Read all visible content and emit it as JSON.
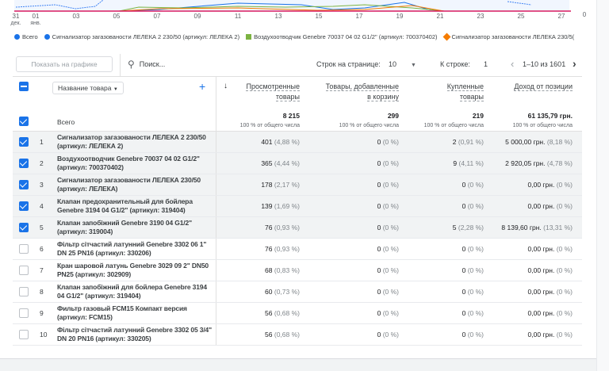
{
  "chart": {
    "x_labels": [
      "31",
      "01",
      "03",
      "05",
      "07",
      "09",
      "11",
      "13",
      "15",
      "17",
      "19",
      "21",
      "23",
      "25",
      "27"
    ],
    "month_labels": [
      "дек.",
      "янв."
    ],
    "y_label": "0",
    "legend": [
      {
        "label": "Всего",
        "color": "#1a73e8"
      },
      {
        "label": "Сигнализатор загазованости ЛЕЛЕКА 2 230/50 (артикул: ЛЕЛЕКА 2)",
        "color": "#1a73e8"
      },
      {
        "label": "Воздухоотводчик Genebre 70037 04 02 G1/2\" (артикул: 700370402)",
        "color": "#7cb342"
      },
      {
        "label": "Сигнализатор загазованости ЛЕЛЕКА 230/5(",
        "color": "#f57c00"
      }
    ]
  },
  "toolbar": {
    "show_on_chart": "Показать на графике",
    "search_placeholder": "Поиск...",
    "rows_per_page_label": "Строк на странице:",
    "rows_per_page": "10",
    "go_to_row_label": "К строке:",
    "go_to_row": "1",
    "range": "1–10 из 1601"
  },
  "header": {
    "dimension": "Название товара",
    "columns": [
      {
        "l1": "Просмотренные",
        "l2": "товары"
      },
      {
        "l1": "Товары, добавленные",
        "l2": "в корзину"
      },
      {
        "l1": "Купленные",
        "l2": "товары"
      },
      {
        "l1": "Доход от позиции",
        "l2": ""
      }
    ]
  },
  "totals": {
    "label": "Всего",
    "values": [
      "8 215",
      "299",
      "219",
      "61 135,79 грн."
    ],
    "pct": "100 % от общего числа"
  },
  "rows": [
    {
      "n": "1",
      "name": "Сигнализатор загазованости ЛЕЛЕКА 2 230/50 (артикул: ЛЕЛЕКА 2)",
      "checked": true,
      "c": [
        [
          "401",
          "(4,88 %)"
        ],
        [
          "0",
          "(0 %)"
        ],
        [
          "2",
          "(0,91 %)"
        ],
        [
          "5 000,00 грн.",
          "(8,18 %)"
        ]
      ]
    },
    {
      "n": "2",
      "name": "Воздухоотводчик Genebre 70037 04 02 G1/2\" (артикул: 700370402)",
      "checked": true,
      "c": [
        [
          "365",
          "(4,44 %)"
        ],
        [
          "0",
          "(0 %)"
        ],
        [
          "9",
          "(4,11 %)"
        ],
        [
          "2 920,05 грн.",
          "(4,78 %)"
        ]
      ]
    },
    {
      "n": "3",
      "name": "Сигнализатор загазованости ЛЕЛЕКА 230/50 (артикул: ЛЕЛЕКА)",
      "checked": true,
      "c": [
        [
          "178",
          "(2,17 %)"
        ],
        [
          "0",
          "(0 %)"
        ],
        [
          "0",
          "(0 %)"
        ],
        [
          "0,00 грн.",
          "(0 %)"
        ]
      ]
    },
    {
      "n": "4",
      "name": "Клапан предохранительный для бойлера Genebre 3194 04 G1/2\" (артикул: 319404)",
      "checked": true,
      "c": [
        [
          "139",
          "(1,69 %)"
        ],
        [
          "0",
          "(0 %)"
        ],
        [
          "0",
          "(0 %)"
        ],
        [
          "0,00 грн.",
          "(0 %)"
        ]
      ]
    },
    {
      "n": "5",
      "name": "Клапан запобіжний Genebre 3190 04 G1/2\" (артикул: 319004)",
      "checked": true,
      "c": [
        [
          "76",
          "(0,93 %)"
        ],
        [
          "0",
          "(0 %)"
        ],
        [
          "5",
          "(2,28 %)"
        ],
        [
          "8 139,60 грн.",
          "(13,31 %)"
        ]
      ]
    },
    {
      "n": "6",
      "name": "Фільтр сітчастий латунний Genebre 3302 06 1\" DN 25 PN16 (артикул: 330206)",
      "checked": false,
      "c": [
        [
          "76",
          "(0,93 %)"
        ],
        [
          "0",
          "(0 %)"
        ],
        [
          "0",
          "(0 %)"
        ],
        [
          "0,00 грн.",
          "(0 %)"
        ]
      ]
    },
    {
      "n": "7",
      "name": "Кран шаровой латунь Genebre 3029 09 2\" DN50 PN25 (артикул: 302909)",
      "checked": false,
      "c": [
        [
          "68",
          "(0,83 %)"
        ],
        [
          "0",
          "(0 %)"
        ],
        [
          "0",
          "(0 %)"
        ],
        [
          "0,00 грн.",
          "(0 %)"
        ]
      ]
    },
    {
      "n": "8",
      "name": "Клапан запобіжний для бойлера Genebre 3194 04 G1/2\" (артикул: 319404)",
      "checked": false,
      "c": [
        [
          "60",
          "(0,73 %)"
        ],
        [
          "0",
          "(0 %)"
        ],
        [
          "0",
          "(0 %)"
        ],
        [
          "0,00 грн.",
          "(0 %)"
        ]
      ]
    },
    {
      "n": "9",
      "name": "Фильтр газовый FCM15 Компакт версия (артикул: FCM15)",
      "checked": false,
      "c": [
        [
          "56",
          "(0,68 %)"
        ],
        [
          "0",
          "(0 %)"
        ],
        [
          "0",
          "(0 %)"
        ],
        [
          "0,00 грн.",
          "(0 %)"
        ]
      ]
    },
    {
      "n": "10",
      "name": "Фільтр сітчастий латунний Genebre 3302 05 3/4\" DN 20 PN16 (артикул: 330205)",
      "checked": false,
      "c": [
        [
          "56",
          "(0,68 %)"
        ],
        [
          "0",
          "(0 %)"
        ],
        [
          "0",
          "(0 %)"
        ],
        [
          "0,00 грн.",
          "(0 %)"
        ]
      ]
    }
  ]
}
